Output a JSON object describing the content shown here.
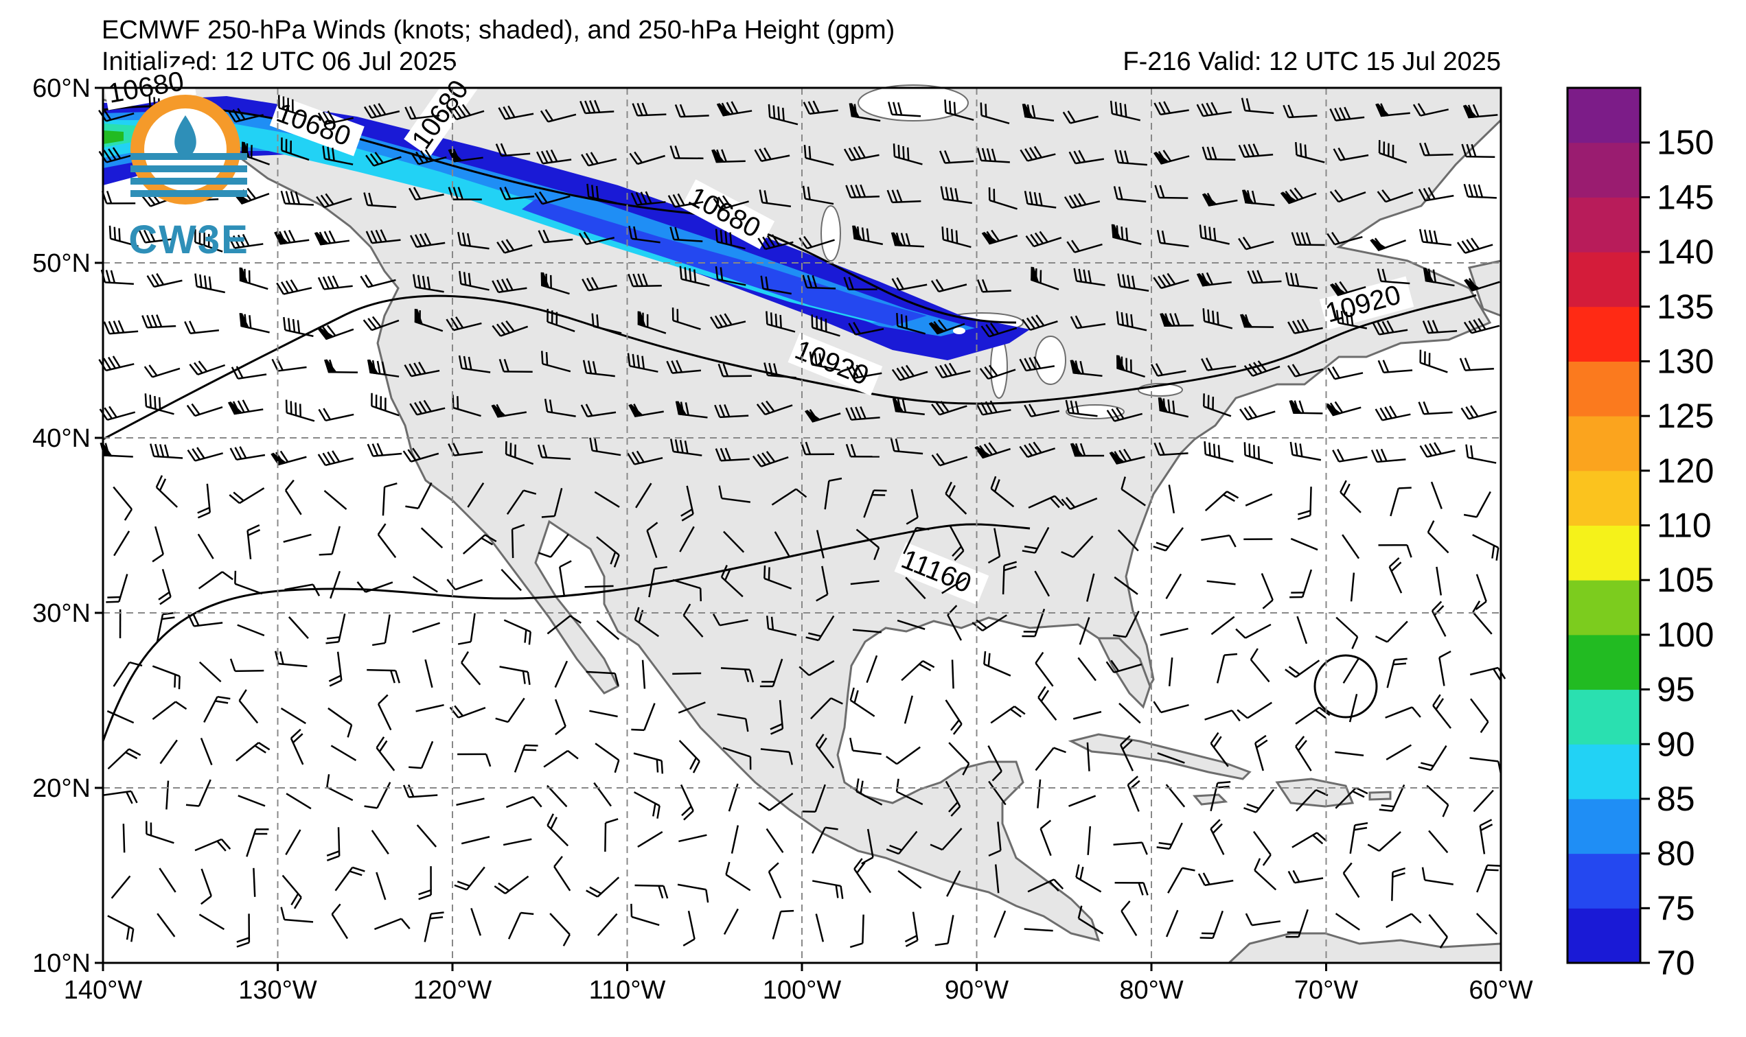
{
  "header": {
    "title": "ECMWF 250-hPa Winds (knots; shaded), and 250-hPa Height (gpm)",
    "initialized": "Initialized: 12 UTC 06 Jul 2025",
    "valid": "F-216  Valid: 12 UTC 15 Jul 2025"
  },
  "logo": {
    "text": "CW3E"
  },
  "map": {
    "lon_ticks": [
      "140°W",
      "130°W",
      "120°W",
      "110°W",
      "100°W",
      "90°W",
      "80°W",
      "70°W",
      "60°W"
    ],
    "lat_ticks": [
      "10°N",
      "20°N",
      "30°N",
      "40°N",
      "50°N",
      "60°N"
    ],
    "lon_range": [
      -140,
      -60
    ],
    "lat_range": [
      10,
      60
    ],
    "land_color": "#e6e6e6",
    "ocean_color": "#ffffff",
    "gridline_style": "dashed gray"
  },
  "contours": {
    "labels": [
      "10680",
      "10680",
      "10680",
      "10920",
      "10920",
      "11160"
    ]
  },
  "colorbar": {
    "levels": [
      70,
      75,
      80,
      85,
      90,
      95,
      100,
      105,
      110,
      120,
      125,
      130,
      135,
      140,
      145,
      150
    ],
    "tick_labels": [
      "70",
      "75",
      "80",
      "85",
      "90",
      "95",
      "100",
      "105",
      "110",
      "120",
      "125",
      "130",
      "135",
      "140",
      "145",
      "150"
    ],
    "colors": [
      "#1a1ad6",
      "#2448f0",
      "#1f8ef5",
      "#22d2f5",
      "#2ae0b0",
      "#22bb22",
      "#7ccc1e",
      "#f5f21a",
      "#fbc31e",
      "#fba41e",
      "#fb7a1e",
      "#ff2a14",
      "#d41c3a",
      "#b81c5a",
      "#9a1c70",
      "#7c1c88"
    ]
  }
}
